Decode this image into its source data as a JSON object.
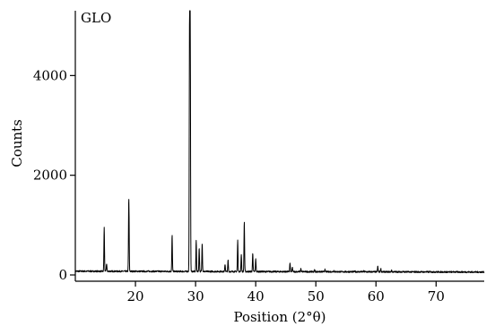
{
  "chart_data": {
    "type": "line",
    "panel_label": "GLO",
    "title": "",
    "xlabel": "Position (2°θ)",
    "ylabel": "Counts",
    "xlim": [
      10,
      78
    ],
    "ylim": [
      0,
      5300
    ],
    "xticks": [
      20,
      30,
      40,
      50,
      60,
      70
    ],
    "yticks": [
      0,
      2000,
      4000
    ],
    "grid": false,
    "legend": "none",
    "line_color": "#000000",
    "baseline_counts": 75,
    "peaks": [
      {
        "x": 14.8,
        "y": 950
      },
      {
        "x": 15.2,
        "y": 230
      },
      {
        "x": 18.9,
        "y": 1550
      },
      {
        "x": 26.1,
        "y": 800
      },
      {
        "x": 29.0,
        "y": 4650
      },
      {
        "x": 29.1,
        "y": 5300
      },
      {
        "x": 30.1,
        "y": 700
      },
      {
        "x": 30.6,
        "y": 550
      },
      {
        "x": 31.1,
        "y": 650
      },
      {
        "x": 34.9,
        "y": 220
      },
      {
        "x": 35.4,
        "y": 300
      },
      {
        "x": 37.0,
        "y": 700
      },
      {
        "x": 37.6,
        "y": 420
      },
      {
        "x": 38.1,
        "y": 1080
      },
      {
        "x": 39.5,
        "y": 450
      },
      {
        "x": 40.0,
        "y": 330
      },
      {
        "x": 45.7,
        "y": 250
      },
      {
        "x": 46.1,
        "y": 160
      },
      {
        "x": 47.5,
        "y": 140
      },
      {
        "x": 49.8,
        "y": 110
      },
      {
        "x": 51.5,
        "y": 120
      },
      {
        "x": 53.0,
        "y": 100
      },
      {
        "x": 56.5,
        "y": 90
      },
      {
        "x": 58.0,
        "y": 90
      },
      {
        "x": 60.3,
        "y": 190
      },
      {
        "x": 60.8,
        "y": 140
      },
      {
        "x": 62.6,
        "y": 110
      },
      {
        "x": 64.5,
        "y": 85
      },
      {
        "x": 69.0,
        "y": 85
      },
      {
        "x": 73.0,
        "y": 80
      }
    ]
  }
}
